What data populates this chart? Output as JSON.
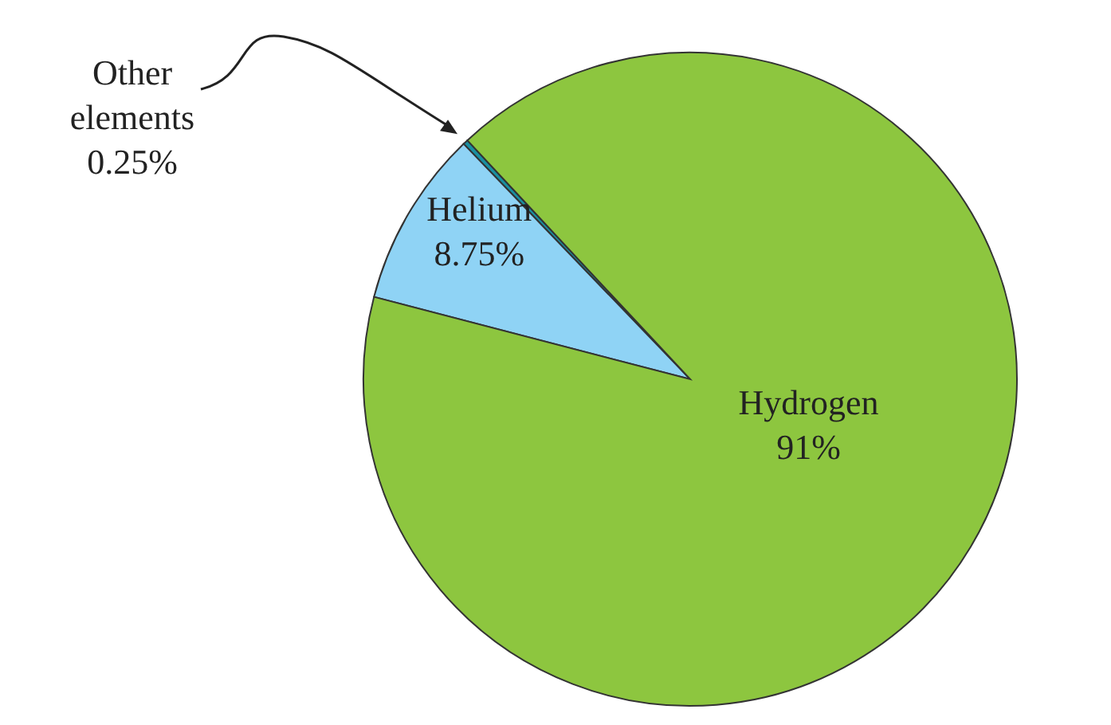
{
  "chart_data": {
    "type": "pie",
    "categories": [
      "Other elements",
      "Helium",
      "Hydrogen"
    ],
    "values": [
      0.25,
      8.75,
      91
    ],
    "value_labels": [
      "0.25%",
      "8.75%",
      "91%"
    ],
    "colors": [
      "#1a8fa0",
      "#8fd3f5",
      "#8dc63f"
    ]
  }
}
